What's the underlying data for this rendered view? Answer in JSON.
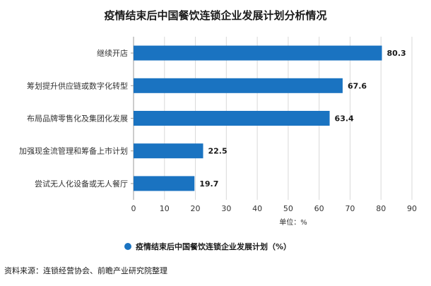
{
  "chart_data": {
    "type": "bar",
    "orientation": "horizontal",
    "title": "疫情结束后中国餐饮连锁企业发展计划分析情况",
    "categories": [
      "继续开店",
      "筹划提升供应链或数字化转型",
      "布局品牌零售化及集团化发展",
      "加强现金流管理和筹备上市计划",
      "尝试无人化设备或无人餐厅"
    ],
    "series": [
      {
        "name": "疫情结束后中国餐饮连锁企业发展计划（%）",
        "values": [
          80.3,
          67.6,
          63.4,
          22.5,
          19.7
        ],
        "color": "#1a73c1"
      }
    ],
    "xlim": [
      0,
      90
    ],
    "xticks": [
      0,
      10,
      20,
      30,
      40,
      50,
      60,
      70,
      80,
      90
    ],
    "xlabel": "单位：%",
    "grid": true,
    "legend_position": "bottom-center"
  },
  "source": "资料来源：连锁经营协会、前瞻产业研究院整理",
  "colors": {
    "bar": "#1a73c1",
    "grid": "#d9d9d9",
    "axis": "#999999"
  }
}
